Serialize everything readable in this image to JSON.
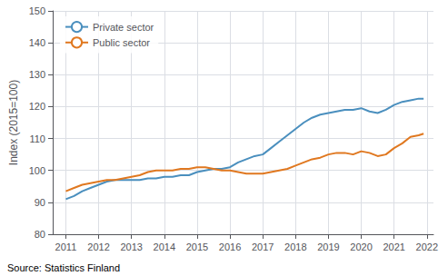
{
  "chart_data": {
    "type": "line",
    "ylabel": "Index (2015=100)",
    "source": "Source: Statistics Finland",
    "x": [
      2011.0,
      2011.25,
      2011.5,
      2011.75,
      2012.0,
      2012.25,
      2012.5,
      2012.75,
      2013.0,
      2013.25,
      2013.5,
      2013.75,
      2014.0,
      2014.25,
      2014.5,
      2014.75,
      2015.0,
      2015.25,
      2015.5,
      2015.75,
      2016.0,
      2016.25,
      2016.5,
      2016.75,
      2017.0,
      2017.25,
      2017.5,
      2017.75,
      2018.0,
      2018.25,
      2018.5,
      2018.75,
      2019.0,
      2019.25,
      2019.5,
      2019.75,
      2020.0,
      2020.25,
      2020.5,
      2020.75,
      2021.0,
      2021.25,
      2021.5,
      2021.75,
      2021.9
    ],
    "xlim": [
      2010.6,
      2022.2
    ],
    "xticks": [
      2011,
      2012,
      2013,
      2014,
      2015,
      2016,
      2017,
      2018,
      2019,
      2020,
      2021,
      2022
    ],
    "ylim": [
      80,
      150
    ],
    "yticks": [
      80,
      90,
      100,
      110,
      120,
      130,
      140,
      150
    ],
    "grid": true,
    "legend": "upper left",
    "series": [
      {
        "name": "Private sector",
        "color": "#4a8fbe",
        "values": [
          91.0,
          92.0,
          93.5,
          94.5,
          95.5,
          96.5,
          97.0,
          97.0,
          97.0,
          97.0,
          97.5,
          97.5,
          98.0,
          98.0,
          98.5,
          98.5,
          99.5,
          100.0,
          100.5,
          100.5,
          101.0,
          102.5,
          103.5,
          104.5,
          105.0,
          107.0,
          109.0,
          111.0,
          113.0,
          115.0,
          116.5,
          117.5,
          118.0,
          118.5,
          119.0,
          119.0,
          119.5,
          118.5,
          118.0,
          119.0,
          120.5,
          121.5,
          122.0,
          122.5,
          122.5
        ]
      },
      {
        "name": "Public sector",
        "color": "#e07820",
        "values": [
          93.5,
          94.5,
          95.5,
          96.0,
          96.5,
          97.0,
          97.0,
          97.5,
          98.0,
          98.5,
          99.5,
          100.0,
          100.0,
          100.0,
          100.5,
          100.5,
          101.0,
          101.0,
          100.5,
          100.0,
          100.0,
          99.5,
          99.0,
          99.0,
          99.0,
          99.5,
          100.0,
          100.5,
          101.5,
          102.5,
          103.5,
          104.0,
          105.0,
          105.5,
          105.5,
          105.0,
          106.0,
          105.5,
          104.5,
          105.0,
          107.0,
          108.5,
          110.5,
          111.0,
          111.5
        ]
      }
    ]
  }
}
